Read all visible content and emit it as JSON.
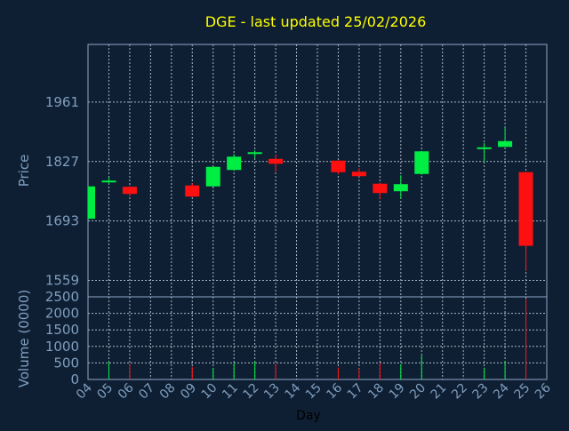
{
  "chart_data": {
    "type": "candlestick",
    "title": "DGE - last updated 25/02/2026",
    "xlabel": "Day",
    "price_axis": {
      "label": "Price",
      "ticks": [
        1559,
        1693,
        1827,
        1961
      ],
      "range": [
        1522,
        2091
      ]
    },
    "volume_axis": {
      "label": "Volume (0000)",
      "ticks": [
        0,
        500,
        1000,
        1500,
        2000,
        2500
      ],
      "range": [
        0,
        2500
      ]
    },
    "x_ticks": [
      "04",
      "05",
      "06",
      "07",
      "08",
      "09",
      "10",
      "11",
      "12",
      "13",
      "14",
      "15",
      "16",
      "17",
      "18",
      "19",
      "20",
      "21",
      "22",
      "23",
      "24",
      "25",
      "26"
    ],
    "grid": true,
    "colors": {
      "background": "#0f1f33",
      "title": "#ffff00",
      "axis_text": "#7f9fbf",
      "frame": "#8fa9c4",
      "grid": "#a8b8c8",
      "up": "#00ee44",
      "down": "#ff1010"
    },
    "candles": [
      {
        "day": "04",
        "open": 1698,
        "high": 1772,
        "low": 1697,
        "close": 1771
      },
      {
        "day": "05",
        "open": 1782,
        "high": 1792,
        "low": 1776,
        "close": 1784
      },
      {
        "day": "06",
        "open": 1770,
        "high": 1772,
        "low": 1748,
        "close": 1754
      },
      {
        "day": "09",
        "open": 1773,
        "high": 1778,
        "low": 1747,
        "close": 1748
      },
      {
        "day": "10",
        "open": 1771,
        "high": 1816,
        "low": 1770,
        "close": 1815
      },
      {
        "day": "11",
        "open": 1808,
        "high": 1844,
        "low": 1806,
        "close": 1838
      },
      {
        "day": "12",
        "open": 1846,
        "high": 1852,
        "low": 1834,
        "close": 1848
      },
      {
        "day": "13",
        "open": 1833,
        "high": 1842,
        "low": 1804,
        "close": 1822
      },
      {
        "day": "16",
        "open": 1829,
        "high": 1830,
        "low": 1799,
        "close": 1803
      },
      {
        "day": "17",
        "open": 1804,
        "high": 1812,
        "low": 1794,
        "close": 1794
      },
      {
        "day": "18",
        "open": 1777,
        "high": 1779,
        "low": 1742,
        "close": 1756
      },
      {
        "day": "19",
        "open": 1760,
        "high": 1796,
        "low": 1743,
        "close": 1776
      },
      {
        "day": "20",
        "open": 1799,
        "high": 1851,
        "low": 1797,
        "close": 1850
      },
      {
        "day": "23",
        "open": 1855,
        "high": 1869,
        "low": 1826,
        "close": 1859
      },
      {
        "day": "24",
        "open": 1860,
        "high": 1904,
        "low": 1860,
        "close": 1873
      },
      {
        "day": "25",
        "open": 1803,
        "high": 1804,
        "low": 1580,
        "close": 1637
      }
    ],
    "volume": [
      {
        "day": "05",
        "value": 540,
        "dir": "up"
      },
      {
        "day": "06",
        "value": 480,
        "dir": "down"
      },
      {
        "day": "09",
        "value": 380,
        "dir": "down"
      },
      {
        "day": "10",
        "value": 350,
        "dir": "up"
      },
      {
        "day": "11",
        "value": 520,
        "dir": "up"
      },
      {
        "day": "12",
        "value": 550,
        "dir": "up"
      },
      {
        "day": "13",
        "value": 470,
        "dir": "down"
      },
      {
        "day": "16",
        "value": 360,
        "dir": "down"
      },
      {
        "day": "17",
        "value": 330,
        "dir": "down"
      },
      {
        "day": "18",
        "value": 500,
        "dir": "down"
      },
      {
        "day": "19",
        "value": 460,
        "dir": "up"
      },
      {
        "day": "20",
        "value": 720,
        "dir": "up"
      },
      {
        "day": "23",
        "value": 360,
        "dir": "up"
      },
      {
        "day": "24",
        "value": 560,
        "dir": "up"
      },
      {
        "day": "25",
        "value": 2450,
        "dir": "down"
      }
    ]
  }
}
